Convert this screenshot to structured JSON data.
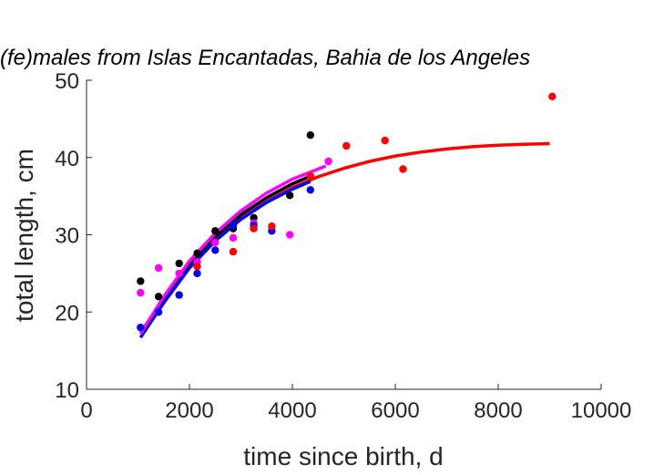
{
  "chart_data": {
    "type": "scatter",
    "title": "(fe)males from Islas Encantadas, Bahia de los Angeles",
    "xlabel": "time since birth, d",
    "ylabel": "total length, cm",
    "xlim": [
      0,
      10000
    ],
    "ylim": [
      10,
      50
    ],
    "xticks": [
      "0",
      "2000",
      "4000",
      "6000",
      "8000",
      "10000"
    ],
    "yticks": [
      "10",
      "20",
      "30",
      "40",
      "50"
    ],
    "grid": false,
    "series": [
      {
        "color": "#000000",
        "points": [
          [
            1050,
            24.0
          ],
          [
            1400,
            22.0
          ],
          [
            1800,
            26.3
          ],
          [
            2150,
            27.6
          ],
          [
            2500,
            30.5
          ],
          [
            2850,
            30.8
          ],
          [
            3250,
            32.2
          ],
          [
            3950,
            35.1
          ],
          [
            4350,
            42.9
          ]
        ],
        "curve": [
          [
            1100,
            17.5
          ],
          [
            1500,
            21.9
          ],
          [
            2000,
            26.3
          ],
          [
            2500,
            29.8
          ],
          [
            3000,
            32.6
          ],
          [
            3500,
            34.8
          ],
          [
            4000,
            36.6
          ],
          [
            4350,
            37.6
          ]
        ]
      },
      {
        "color": "#ff00ff",
        "points": [
          [
            1050,
            22.5
          ],
          [
            1400,
            25.7
          ],
          [
            1800,
            25.0
          ],
          [
            2150,
            26.5
          ],
          [
            2500,
            29.0
          ],
          [
            2850,
            29.6
          ],
          [
            3250,
            31.5
          ],
          [
            3950,
            30.0
          ],
          [
            4700,
            39.5
          ]
        ],
        "curve": [
          [
            1050,
            17.2
          ],
          [
            1500,
            22.0
          ],
          [
            2000,
            26.6
          ],
          [
            2500,
            30.2
          ],
          [
            3000,
            33.1
          ],
          [
            3500,
            35.4
          ],
          [
            4000,
            37.2
          ],
          [
            4650,
            38.9
          ]
        ]
      },
      {
        "color": "#0000ff",
        "points": [
          [
            1050,
            18.0
          ],
          [
            1400,
            20.0
          ],
          [
            1800,
            22.2
          ],
          [
            2150,
            25.0
          ],
          [
            2500,
            28.0
          ],
          [
            2850,
            31.2
          ],
          [
            3250,
            31.2
          ],
          [
            3600,
            30.5
          ],
          [
            4350,
            35.8
          ]
        ],
        "curve": [
          [
            1050,
            16.7
          ],
          [
            1500,
            21.2
          ],
          [
            2000,
            25.7
          ],
          [
            2500,
            29.2
          ],
          [
            3000,
            32.0
          ],
          [
            3500,
            34.2
          ],
          [
            4000,
            35.9
          ],
          [
            4350,
            36.9
          ]
        ]
      },
      {
        "color": "#ff0000",
        "points": [
          [
            2150,
            25.9
          ],
          [
            2850,
            27.8
          ],
          [
            3250,
            30.8
          ],
          [
            3600,
            31.1
          ],
          [
            4350,
            37.6
          ],
          [
            5050,
            41.5
          ],
          [
            5800,
            42.2
          ],
          [
            6150,
            38.5
          ],
          [
            9050,
            47.9
          ]
        ],
        "curve": [
          [
            1050,
            17.3
          ],
          [
            1500,
            21.8
          ],
          [
            2000,
            26.0
          ],
          [
            2500,
            29.4
          ],
          [
            3000,
            32.1
          ],
          [
            3500,
            34.3
          ],
          [
            4000,
            36.1
          ],
          [
            4500,
            37.5
          ],
          [
            5000,
            38.6
          ],
          [
            5500,
            39.5
          ],
          [
            6000,
            40.2
          ],
          [
            6500,
            40.7
          ],
          [
            7000,
            41.1
          ],
          [
            7500,
            41.4
          ],
          [
            8000,
            41.6
          ],
          [
            8500,
            41.7
          ],
          [
            9000,
            41.8
          ]
        ]
      }
    ]
  }
}
